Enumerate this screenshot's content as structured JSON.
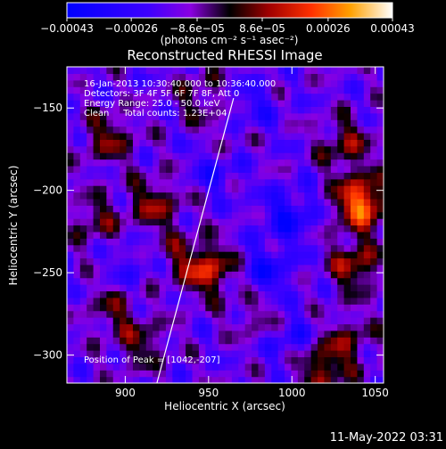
{
  "chart_data": {
    "type": "heatmap",
    "title": "Reconstructed RHESSI Image",
    "xlabel": "Heliocentric X (arcsec)",
    "ylabel": "Heliocentric Y (arcsec)",
    "xlim": [
      865,
      1055
    ],
    "ylim": [
      -317,
      -125
    ],
    "x_ticks": [
      900,
      950,
      1000,
      1050
    ],
    "y_ticks": [
      -300,
      -250,
      -200,
      -150
    ],
    "x_tick_labels": [
      "900",
      "950",
      "1000",
      "1050"
    ],
    "y_tick_labels": [
      "−300",
      "−250",
      "−200",
      "−150"
    ],
    "colorbar": {
      "min": -0.00043,
      "max": 0.00043,
      "ticks": [
        -0.00043,
        -0.00026,
        -8.6e-05,
        8.6e-05,
        0.00026,
        0.00043
      ],
      "tick_labels": [
        "−0.00043",
        "−0.00026",
        "−8.6e−05",
        "8.6e−05",
        "0.00026",
        "0.00043"
      ],
      "units_label": "(photons cm⁻² s⁻¹ asec⁻²)"
    },
    "annotations": {
      "time_range": "16-Jan-2013 10:30:40.000 to 10:36:40.000",
      "detectors": "Detectors: 3F 4F 5F 6F 7F 8F, Att 0",
      "energy_range": "Energy Range: 25.0 - 50.0 keV",
      "clean_counts": "Clean     Total counts: 1.23E+04",
      "peak_position": "Position of Peak = [1042,-207]"
    },
    "limb_line": {
      "x": [
        919,
        965
      ],
      "y": [
        -317,
        -144
      ]
    },
    "peak": {
      "x": 1042,
      "y": -207
    },
    "hotspots": [
      {
        "x": 1042,
        "y": -207,
        "value": 0.00043
      },
      {
        "x": 1038,
        "y": -245,
        "value": 0.00025
      },
      {
        "x": 1032,
        "y": -172,
        "value": 0.0002
      },
      {
        "x": 950,
        "y": -248,
        "value": 0.0003
      },
      {
        "x": 918,
        "y": -208,
        "value": 0.00022
      },
      {
        "x": 890,
        "y": -168,
        "value": 0.0002
      },
      {
        "x": 882,
        "y": -218,
        "value": 0.00016
      },
      {
        "x": 945,
        "y": -142,
        "value": 0.00014
      },
      {
        "x": 893,
        "y": -272,
        "value": 0.00015
      },
      {
        "x": 910,
        "y": -293,
        "value": 0.00016
      },
      {
        "x": 1018,
        "y": -307,
        "value": 0.00025
      },
      {
        "x": 1035,
        "y": -290,
        "value": 0.00015
      },
      {
        "x": 980,
        "y": -275,
        "value": 0.00012
      },
      {
        "x": 930,
        "y": -240,
        "value": 0.00012
      },
      {
        "x": 960,
        "y": -170,
        "value": 0.00011
      },
      {
        "x": 998,
        "y": -215,
        "value": -0.0002
      },
      {
        "x": 985,
        "y": -250,
        "value": -0.00018
      },
      {
        "x": 955,
        "y": -185,
        "value": -0.00015
      },
      {
        "x": 975,
        "y": -150,
        "value": -0.00012
      },
      {
        "x": 1000,
        "y": -290,
        "value": -0.00014
      },
      {
        "x": 905,
        "y": -245,
        "value": -0.0001
      }
    ]
  },
  "footer": {
    "timestamp": "11-May-2022 03:31"
  }
}
